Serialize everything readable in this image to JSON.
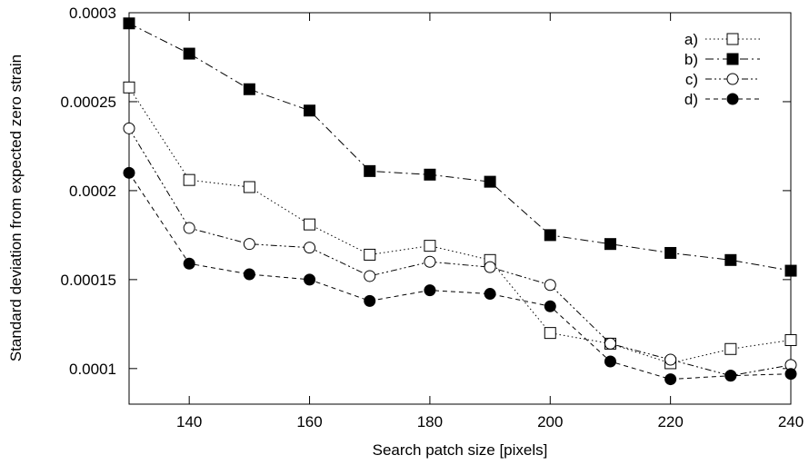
{
  "chart_data": {
    "type": "line",
    "xlabel": "Search patch size [pixels]",
    "ylabel": "Standard deviation from expected zero strain",
    "xlim": [
      130,
      240
    ],
    "ylim": [
      8e-05,
      0.0003
    ],
    "xticks": [
      140,
      160,
      180,
      200,
      220,
      240
    ],
    "xtick_labels": [
      "140",
      "160",
      "180",
      "200",
      "220",
      "240"
    ],
    "yticks": [
      0.0001,
      0.00015,
      0.0002,
      0.00025,
      0.0003
    ],
    "ytick_labels": [
      "0.0001",
      "0.00015",
      "0.0002",
      "0.00025",
      "0.0003"
    ],
    "grid": false,
    "legend_position": "top-right",
    "x": [
      130,
      140,
      150,
      160,
      170,
      180,
      190,
      200,
      210,
      220,
      230,
      240
    ],
    "series": [
      {
        "name": "a)",
        "marker": "open-square",
        "line_style": "dotted",
        "values": [
          0.000258,
          0.000206,
          0.000202,
          0.000181,
          0.000164,
          0.000169,
          0.000161,
          0.00012,
          0.000114,
          0.000103,
          0.000111,
          0.000116
        ]
      },
      {
        "name": "b)",
        "marker": "filled-square",
        "line_style": "dash-dot",
        "values": [
          0.000294,
          0.000277,
          0.000257,
          0.000245,
          0.000211,
          0.000209,
          0.000205,
          0.000175,
          0.00017,
          0.000165,
          0.000161,
          0.000155
        ]
      },
      {
        "name": "c)",
        "marker": "open-circle",
        "line_style": "dash-dot-dot",
        "values": [
          0.000235,
          0.000179,
          0.00017,
          0.000168,
          0.000152,
          0.00016,
          0.000157,
          0.000147,
          0.000114,
          0.000105,
          9.6e-05,
          0.000102
        ]
      },
      {
        "name": "d)",
        "marker": "filled-circle",
        "line_style": "dashed",
        "values": [
          0.00021,
          0.000159,
          0.000153,
          0.00015,
          0.000138,
          0.000144,
          0.000142,
          0.000135,
          0.000104,
          9.4e-05,
          9.6e-05,
          9.7e-05
        ]
      }
    ]
  }
}
